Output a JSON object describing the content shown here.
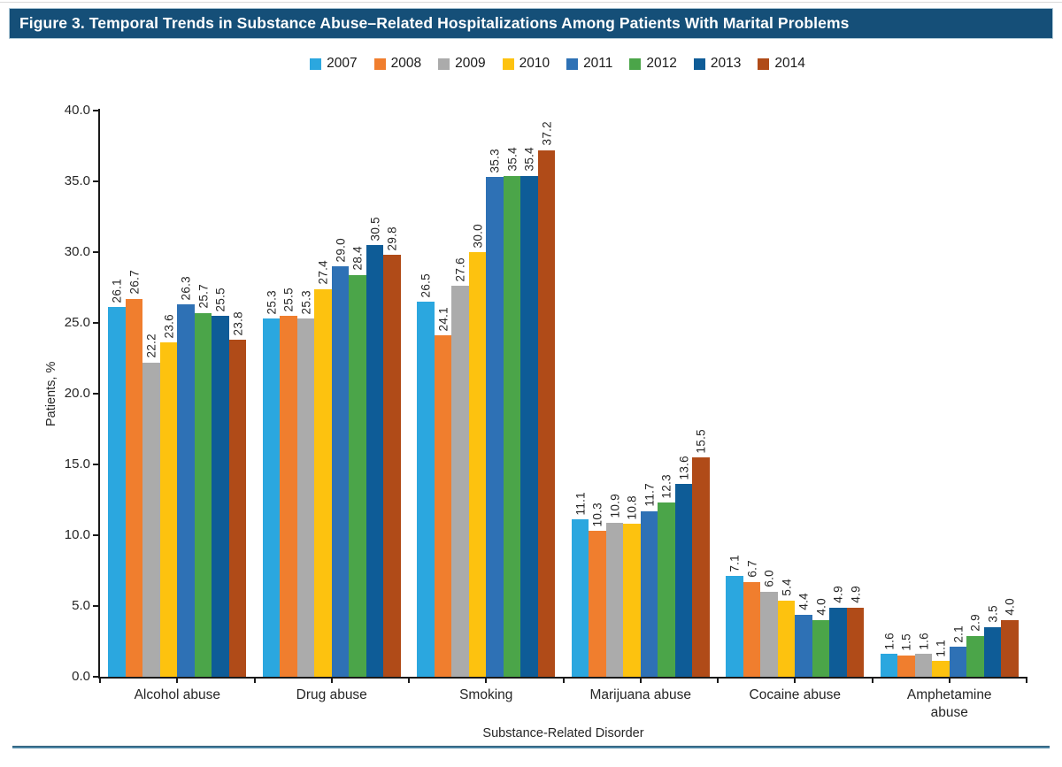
{
  "title_bar": {
    "text": "Figure 3. Temporal Trends in Substance Abuse–Related Hospitalizations Among Patients With Marital Problems",
    "bg_color": "#154F78"
  },
  "chart_data": {
    "type": "bar",
    "title": "Temporal Trends in Substance Abuse–Related Hospitalizations Among Patients With Marital Problems",
    "categories": [
      "Alcohol abuse",
      "Drug abuse",
      "Smoking",
      "Marijuana abuse",
      "Cocaine abuse",
      "Amphetamine\nabuse"
    ],
    "series": [
      {
        "name": "2007",
        "color": "#2BA7DF",
        "values": [
          26.1,
          25.3,
          26.5,
          11.1,
          7.1,
          1.6
        ]
      },
      {
        "name": "2008",
        "color": "#F07E2E",
        "values": [
          26.7,
          25.5,
          24.1,
          10.3,
          6.7,
          1.5
        ]
      },
      {
        "name": "2009",
        "color": "#ABABAB",
        "values": [
          22.2,
          25.3,
          27.6,
          10.9,
          6.0,
          1.6
        ]
      },
      {
        "name": "2010",
        "color": "#FDC20F",
        "values": [
          23.6,
          27.4,
          30.0,
          10.8,
          5.4,
          1.1
        ]
      },
      {
        "name": "2011",
        "color": "#2E71B5",
        "values": [
          26.3,
          29.0,
          35.3,
          11.7,
          4.4,
          2.1
        ]
      },
      {
        "name": "2012",
        "color": "#4BA549",
        "values": [
          25.7,
          28.4,
          35.4,
          12.3,
          4.0,
          2.9
        ]
      },
      {
        "name": "2013",
        "color": "#0E5C97",
        "values": [
          25.5,
          30.5,
          35.4,
          13.6,
          4.9,
          3.5
        ]
      },
      {
        "name": "2014",
        "color": "#B04B18",
        "values": [
          23.8,
          29.8,
          37.2,
          15.5,
          4.9,
          4.0
        ]
      }
    ],
    "xlabel": "Substance-Related Disorder",
    "ylabel": "Patients, %",
    "ylim": [
      0,
      40
    ],
    "ytick_step": 5,
    "ytick_labels": [
      "0.0",
      "5.0",
      "10.0",
      "15.0",
      "20.0",
      "25.0",
      "30.0",
      "35.0",
      "40.0"
    ],
    "value_label_format": "one_decimal_rotated",
    "grid": false,
    "legend_position": "top",
    "axis_color": "#1A1A1A",
    "text_color": "#262626"
  },
  "footer": {
    "rule_color": "#4C84A3",
    "rule_edge_color": "#2F5D77",
    "top_rule_color": "#D9D9D9"
  }
}
